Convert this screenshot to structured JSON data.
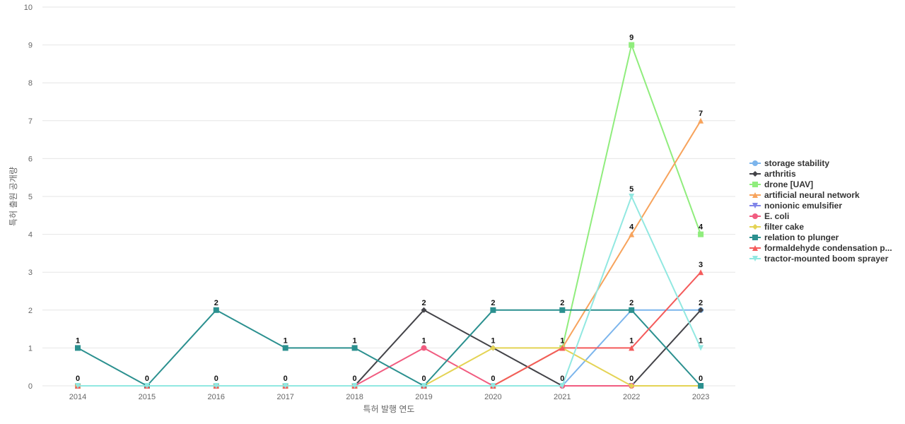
{
  "chart_data": {
    "type": "line",
    "title": "",
    "xlabel": "특허 발행 연도",
    "ylabel": "특허 출원 공개량",
    "x": [
      2014,
      2015,
      2016,
      2017,
      2018,
      2019,
      2020,
      2021,
      2022,
      2023
    ],
    "ylim": [
      0,
      10
    ],
    "yticks": [
      0,
      1,
      2,
      3,
      4,
      5,
      6,
      7,
      8,
      9,
      10
    ],
    "grid": true,
    "legend_position": "right",
    "series": [
      {
        "name": "storage stability",
        "color": "#7cb5ec",
        "marker": "circle",
        "values": [
          0,
          0,
          0,
          0,
          0,
          0,
          0,
          0,
          2,
          2
        ]
      },
      {
        "name": "arthritis",
        "color": "#434348",
        "marker": "diamond",
        "values": [
          0,
          0,
          0,
          0,
          0,
          2,
          1,
          0,
          0,
          2
        ]
      },
      {
        "name": "drone [UAV]",
        "color": "#90ed7d",
        "marker": "square",
        "values": [
          0,
          0,
          0,
          0,
          0,
          0,
          0,
          1,
          9,
          4
        ]
      },
      {
        "name": "artificial neural network",
        "color": "#f7a35c",
        "marker": "triangle",
        "values": [
          0,
          0,
          0,
          0,
          0,
          0,
          0,
          1,
          4,
          7
        ]
      },
      {
        "name": "nonionic emulsifier",
        "color": "#8085e9",
        "marker": "triangle-down",
        "values": [
          0,
          0,
          0,
          0,
          0,
          0,
          0,
          0,
          0,
          0
        ]
      },
      {
        "name": "E. coli",
        "color": "#f15c80",
        "marker": "circle",
        "values": [
          0,
          0,
          0,
          0,
          0,
          1,
          0,
          0,
          0,
          0
        ]
      },
      {
        "name": "filter cake",
        "color": "#e4d354",
        "marker": "diamond",
        "values": [
          0,
          0,
          0,
          0,
          0,
          0,
          1,
          1,
          0,
          0
        ]
      },
      {
        "name": "relation to plunger",
        "color": "#2b908f",
        "marker": "square",
        "values": [
          1,
          0,
          2,
          1,
          1,
          0,
          2,
          2,
          2,
          0
        ]
      },
      {
        "name": "formaldehyde condensation p...",
        "color": "#f45b5b",
        "marker": "triangle",
        "values": [
          0,
          0,
          0,
          0,
          0,
          0,
          0,
          1,
          1,
          3
        ]
      },
      {
        "name": "tractor-mounted boom sprayer",
        "color": "#91e8e1",
        "marker": "triangle-down",
        "values": [
          0,
          0,
          0,
          0,
          0,
          0,
          0,
          0,
          5,
          1
        ]
      }
    ],
    "data_labels": [
      {
        "x": 2014,
        "y": 1,
        "text": "1"
      },
      {
        "x": 2014,
        "y": 0,
        "text": "0"
      },
      {
        "x": 2015,
        "y": 0,
        "text": "0"
      },
      {
        "x": 2016,
        "y": 2,
        "text": "2"
      },
      {
        "x": 2016,
        "y": 0,
        "text": "0"
      },
      {
        "x": 2017,
        "y": 1,
        "text": "1"
      },
      {
        "x": 2017,
        "y": 0,
        "text": "0"
      },
      {
        "x": 2018,
        "y": 1,
        "text": "1"
      },
      {
        "x": 2018,
        "y": 0,
        "text": "0"
      },
      {
        "x": 2019,
        "y": 2,
        "text": "2"
      },
      {
        "x": 2019,
        "y": 1,
        "text": "1"
      },
      {
        "x": 2019,
        "y": 0,
        "text": "0"
      },
      {
        "x": 2020,
        "y": 2,
        "text": "2"
      },
      {
        "x": 2020,
        "y": 1,
        "text": "1"
      },
      {
        "x": 2020,
        "y": 0,
        "text": "0"
      },
      {
        "x": 2021,
        "y": 2,
        "text": "2"
      },
      {
        "x": 2021,
        "y": 1,
        "text": "1"
      },
      {
        "x": 2021,
        "y": 0,
        "text": "0"
      },
      {
        "x": 2022,
        "y": 9,
        "text": "9"
      },
      {
        "x": 2022,
        "y": 5,
        "text": "5"
      },
      {
        "x": 2022,
        "y": 4,
        "text": "4"
      },
      {
        "x": 2022,
        "y": 2,
        "text": "2"
      },
      {
        "x": 2022,
        "y": 1,
        "text": "1"
      },
      {
        "x": 2022,
        "y": 0,
        "text": "0"
      },
      {
        "x": 2023,
        "y": 7,
        "text": "7"
      },
      {
        "x": 2023,
        "y": 4,
        "text": "4"
      },
      {
        "x": 2023,
        "y": 3,
        "text": "3"
      },
      {
        "x": 2023,
        "y": 2,
        "text": "2"
      },
      {
        "x": 2023,
        "y": 1,
        "text": "1"
      },
      {
        "x": 2023,
        "y": 0,
        "text": "0"
      }
    ]
  }
}
